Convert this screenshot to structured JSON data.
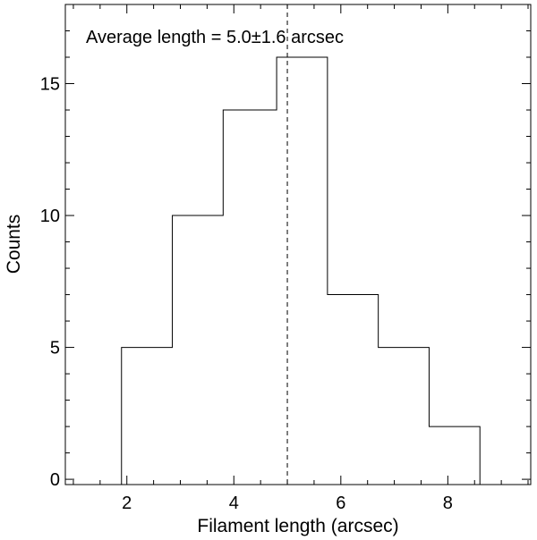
{
  "chart_data": {
    "type": "bar",
    "style": "step-histogram",
    "xlabel": "Filament length (arcsec)",
    "ylabel": "Counts",
    "xlim": [
      0.85,
      9.55
    ],
    "ylim": [
      -0.2,
      18.0
    ],
    "x_ticks": [
      2,
      4,
      6,
      8
    ],
    "x_minor_step": 0.5,
    "y_ticks": [
      0,
      5,
      10,
      15
    ],
    "y_minor_step": 1,
    "bin_edges": [
      1.9,
      2.85,
      3.8,
      4.8,
      5.75,
      6.7,
      7.65,
      8.6
    ],
    "counts": [
      5,
      10,
      14,
      16,
      7,
      5,
      2
    ],
    "mean_line_x": 5.0,
    "annotation": "Average length = 5.0±1.6 arcsec",
    "grid": false,
    "line_color": "#000000"
  }
}
